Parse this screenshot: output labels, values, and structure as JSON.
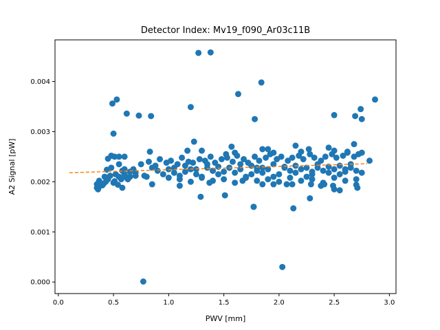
{
  "chart_data": {
    "type": "scatter",
    "title": "Detector Index: Mv19_f090_Ar03c11B",
    "xlabel": "PWV [mm]",
    "ylabel": "A2 Signal [pW]",
    "xlim": [
      -0.03,
      3.06
    ],
    "ylim": [
      -0.00023,
      0.00483
    ],
    "xticks": [
      0.0,
      0.5,
      1.0,
      1.5,
      2.0,
      2.5,
      3.0
    ],
    "xtick_labels": [
      "0.0",
      "0.5",
      "1.0",
      "1.5",
      "2.0",
      "2.5",
      "3.0"
    ],
    "yticks": [
      0.0,
      0.001,
      0.002,
      0.003,
      0.004
    ],
    "ytick_labels": [
      "0.000",
      "0.001",
      "0.002",
      "0.003",
      "0.004"
    ],
    "grid": false,
    "colors": {
      "points": "#1f77b4",
      "fit": "#ff7f0e"
    },
    "fit_line": {
      "name": "linear fit",
      "x": [
        0.1,
        2.8
      ],
      "y": [
        0.00218,
        0.00236
      ],
      "style": "dashed"
    },
    "series": [
      {
        "name": "A2 Signal",
        "x": [
          0.35,
          0.36,
          0.37,
          0.38,
          0.4,
          0.42,
          0.43,
          0.45,
          0.47,
          0.5,
          0.52,
          0.55,
          0.57,
          0.6,
          0.62,
          0.65,
          0.7,
          0.35,
          0.38,
          0.41,
          0.44,
          0.48,
          0.51,
          0.54,
          0.58,
          0.63,
          0.45,
          0.55,
          0.48,
          0.6,
          0.7,
          0.8,
          0.85,
          0.9,
          0.95,
          1.0,
          1.05,
          1.1,
          1.15,
          1.2,
          1.25,
          1.3,
          1.35,
          1.4,
          1.45,
          1.5,
          1.55,
          1.6,
          1.65,
          1.7,
          1.75,
          1.8,
          1.85,
          1.9,
          1.95,
          2.0,
          2.05,
          2.1,
          2.15,
          2.2,
          2.25,
          2.3,
          2.35,
          2.4,
          2.45,
          2.5,
          2.55,
          2.6,
          2.65,
          2.7,
          2.75,
          0.75,
          0.82,
          0.88,
          0.92,
          0.98,
          1.02,
          1.08,
          1.12,
          1.18,
          1.22,
          1.28,
          1.33,
          1.38,
          1.42,
          1.48,
          1.53,
          1.58,
          1.62,
          1.68,
          1.72,
          1.78,
          1.82,
          1.88,
          1.92,
          1.98,
          2.02,
          2.08,
          2.12,
          2.18,
          2.22,
          2.28,
          2.32,
          2.38,
          2.42,
          2.48,
          2.52,
          2.58,
          2.62,
          2.68,
          2.72,
          1.1,
          1.2,
          1.3,
          1.4,
          1.5,
          1.6,
          1.7,
          1.8,
          1.9,
          2.0,
          2.1,
          2.2,
          2.3,
          2.4,
          2.5,
          2.6,
          2.7,
          1.05,
          1.15,
          1.25,
          1.35,
          1.45,
          1.55,
          1.65,
          1.75,
          1.85,
          1.95,
          2.05,
          2.15,
          2.25,
          2.35,
          2.45,
          2.55,
          2.65,
          1.3,
          1.6,
          1.9,
          2.2,
          2.5,
          2.75,
          1.0,
          1.4,
          1.8,
          2.3,
          2.6,
          1.23,
          1.57,
          1.85,
          2.15,
          2.45,
          2.68,
          0.83,
          1.17,
          1.52,
          1.95,
          2.27,
          2.62,
          0.58,
          0.65,
          0.78,
          0.85,
          1.1,
          1.37,
          1.67,
          2.07,
          2.38,
          2.71,
          2.5,
          2.41,
          2.29,
          2.12,
          1.95,
          1.85,
          0.5,
          0.53,
          0.62,
          0.73,
          0.84,
          1.2,
          1.27,
          1.38,
          1.63,
          1.84,
          1.78,
          2.82,
          2.87,
          2.74,
          2.75,
          2.5,
          2.69,
          0.49,
          1.29,
          1.51,
          1.77,
          1.77,
          2.13,
          2.28,
          2.55,
          2.49,
          2.7,
          2.03,
          0.77,
          0.68,
          0.6,
          0.51,
          0.55
        ],
        "y": [
          0.00195,
          0.00185,
          0.00202,
          0.00198,
          0.00193,
          0.0021,
          0.002,
          0.00205,
          0.00212,
          0.00198,
          0.00215,
          0.0021,
          0.00205,
          0.00215,
          0.00208,
          0.0022,
          0.00212,
          0.00188,
          0.00192,
          0.00196,
          0.00224,
          0.00228,
          0.00201,
          0.00194,
          0.00222,
          0.00205,
          0.00246,
          0.00235,
          0.00252,
          0.00225,
          0.00218,
          0.0021,
          0.00228,
          0.00222,
          0.00215,
          0.00208,
          0.00218,
          0.00212,
          0.0022,
          0.00225,
          0.00215,
          0.0021,
          0.00228,
          0.00222,
          0.00215,
          0.0022,
          0.00228,
          0.00218,
          0.00225,
          0.0021,
          0.00215,
          0.00222,
          0.00218,
          0.00225,
          0.0021,
          0.00215,
          0.00228,
          0.00222,
          0.00218,
          0.00225,
          0.0021,
          0.00215,
          0.00228,
          0.00222,
          0.00218,
          0.00225,
          0.00215,
          0.0022,
          0.00228,
          0.00222,
          0.00218,
          0.00235,
          0.0024,
          0.00232,
          0.00245,
          0.00238,
          0.00242,
          0.00235,
          0.00248,
          0.0024,
          0.00238,
          0.00245,
          0.00242,
          0.0025,
          0.00238,
          0.00245,
          0.00248,
          0.0024,
          0.00252,
          0.00245,
          0.00238,
          0.0025,
          0.00242,
          0.00248,
          0.00255,
          0.00245,
          0.0025,
          0.00242,
          0.00248,
          0.00252,
          0.00245,
          0.00255,
          0.00248,
          0.00242,
          0.0025,
          0.00255,
          0.00248,
          0.00252,
          0.00258,
          0.0025,
          0.00255,
          0.00205,
          0.002,
          0.00208,
          0.00202,
          0.00205,
          0.00198,
          0.00208,
          0.00202,
          0.00205,
          0.002,
          0.00208,
          0.00202,
          0.00205,
          0.00198,
          0.00208,
          0.00202,
          0.00205,
          0.00228,
          0.00232,
          0.00225,
          0.00235,
          0.0023,
          0.00228,
          0.00235,
          0.00232,
          0.00228,
          0.00235,
          0.0023,
          0.00232,
          0.00228,
          0.00235,
          0.0023,
          0.00232,
          0.00235,
          0.00262,
          0.00258,
          0.00265,
          0.0026,
          0.00262,
          0.00258,
          0.00225,
          0.00222,
          0.00228,
          0.0022,
          0.00225,
          0.0028,
          0.0027,
          0.00265,
          0.00272,
          0.00268,
          0.00275,
          0.0026,
          0.00262,
          0.00255,
          0.00258,
          0.00265,
          0.0026,
          0.00188,
          0.0021,
          0.00212,
          0.00195,
          0.00192,
          0.00198,
          0.00202,
          0.00195,
          0.00192,
          0.00188,
          0.00185,
          0.00195,
          0.00195,
          0.00195,
          0.00195,
          0.00195,
          0.00296,
          0.00364,
          0.00336,
          0.00332,
          0.00331,
          0.00349,
          0.00457,
          0.00458,
          0.00375,
          0.00398,
          0.00325,
          0.00242,
          0.00364,
          0.00345,
          0.00325,
          0.00333,
          0.00331,
          0.00356,
          0.0017,
          0.00173,
          0.0015,
          0.0015,
          0.00147,
          0.00167,
          0.00183,
          0.00192,
          0.00194,
          0.0003,
          1e-05,
          0.00225,
          0.0025,
          0.0025,
          0.0025
        ]
      }
    ]
  }
}
